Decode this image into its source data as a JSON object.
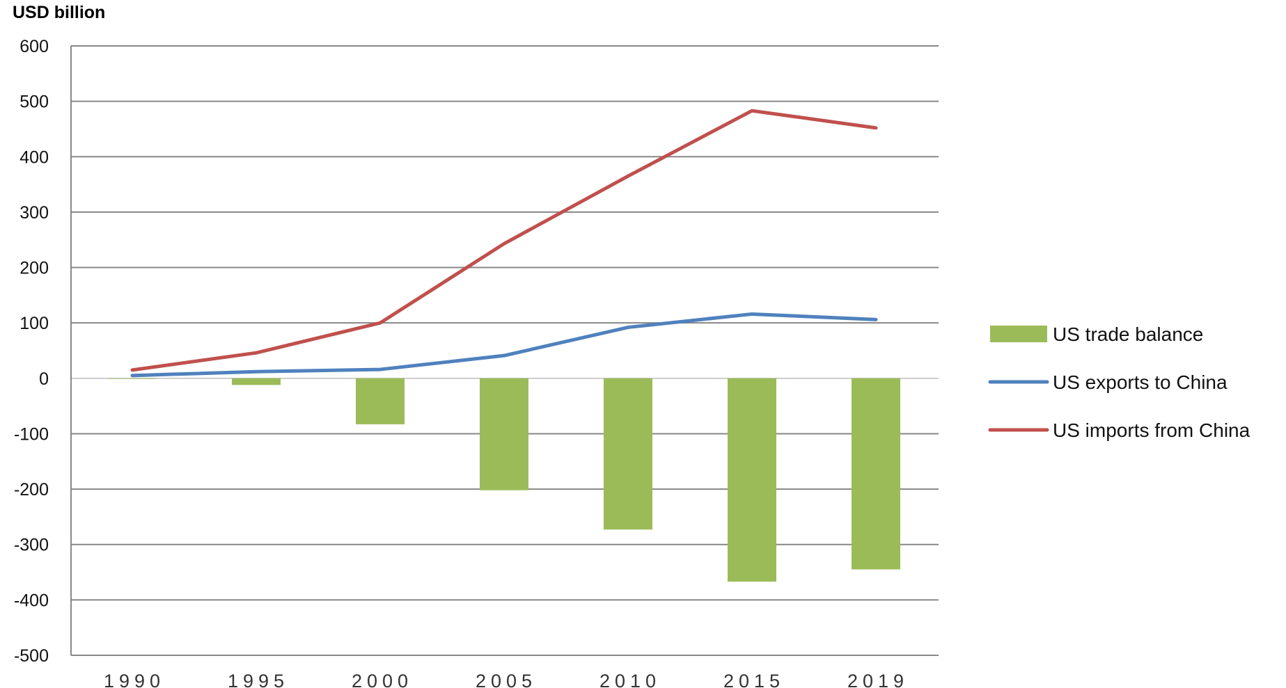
{
  "chart_data": {
    "type": "bar",
    "y_unit_label": "USD billion",
    "xlabel": "",
    "ylabel": "",
    "categories": [
      "1990",
      "1995",
      "2000",
      "2005",
      "2010",
      "2015",
      "2019"
    ],
    "ylim": [
      -500,
      600
    ],
    "yticks": [
      600,
      500,
      400,
      300,
      200,
      100,
      0,
      -100,
      -200,
      -300,
      -400,
      -500
    ],
    "grid": true,
    "legend_position": "right",
    "series": [
      {
        "name": "US trade balance",
        "kind": "bar",
        "color": "#9bbb59",
        "values": [
          -1,
          -12,
          -83,
          -202,
          -273,
          -367,
          -345
        ]
      },
      {
        "name": "US exports to China",
        "kind": "line",
        "color": "#4f81bd",
        "values": [
          5,
          12,
          16,
          41,
          92,
          116,
          106
        ]
      },
      {
        "name": "US imports from China",
        "kind": "line",
        "color": "#c0504d",
        "values": [
          15,
          46,
          100,
          243,
          365,
          483,
          452
        ]
      }
    ]
  }
}
